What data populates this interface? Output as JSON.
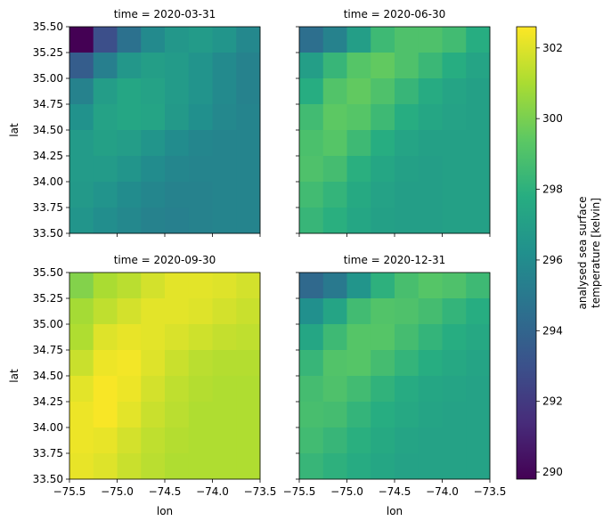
{
  "chart_data": {
    "type": "heatmap",
    "colormap": "viridis",
    "x_label": "lon",
    "y_label": "lat",
    "x_range": [
      -75.5,
      -73.5
    ],
    "y_range": [
      33.5,
      35.5
    ],
    "x_ticks": [
      -75.5,
      -75.0,
      -74.5,
      -74.0,
      -73.5
    ],
    "x_tick_labels": [
      "−75.5",
      "−75.0",
      "−74.5",
      "−74.0",
      "−73.5"
    ],
    "y_ticks": [
      33.5,
      33.75,
      34.0,
      34.25,
      34.5,
      34.75,
      35.0,
      35.25,
      35.5
    ],
    "y_tick_labels": [
      "33.50",
      "33.75",
      "34.00",
      "34.25",
      "34.50",
      "34.75",
      "35.00",
      "35.25",
      "35.50"
    ],
    "colorbar": {
      "label_line1": "analysed sea surface",
      "label_line2": "temperature [kelvin]",
      "vmin": 289.8,
      "vmax": 302.6,
      "ticks": [
        290,
        292,
        294,
        296,
        298,
        300,
        302
      ],
      "tick_labels": [
        "290",
        "292",
        "294",
        "296",
        "298",
        "300",
        "302"
      ]
    },
    "panels": [
      {
        "title": "time = 2020-03-31",
        "values": [
          [
            289.8,
            292.9,
            294.6,
            295.9,
            296.6,
            296.8,
            296.5,
            295.8
          ],
          [
            293.6,
            295.3,
            296.6,
            297.0,
            296.8,
            296.4,
            295.9,
            295.5
          ],
          [
            295.5,
            296.9,
            297.4,
            297.2,
            296.8,
            296.4,
            295.9,
            295.5
          ],
          [
            296.3,
            297.2,
            297.4,
            297.3,
            296.7,
            296.2,
            295.8,
            295.6
          ],
          [
            296.8,
            297.1,
            296.9,
            296.5,
            296.0,
            295.7,
            295.6,
            295.6
          ],
          [
            296.8,
            296.8,
            296.5,
            296.0,
            295.7,
            295.6,
            295.6,
            295.6
          ],
          [
            296.7,
            296.4,
            296.0,
            295.7,
            295.5,
            295.5,
            295.6,
            295.6
          ],
          [
            296.5,
            296.1,
            295.8,
            295.5,
            295.4,
            295.5,
            295.6,
            295.6
          ]
        ]
      },
      {
        "title": "time = 2020-06-30",
        "values": [
          [
            294.5,
            295.5,
            297.0,
            298.5,
            299.0,
            299.0,
            298.6,
            297.8
          ],
          [
            297.0,
            298.3,
            299.2,
            299.5,
            299.0,
            298.4,
            297.8,
            297.3
          ],
          [
            297.8,
            299.1,
            299.5,
            299.0,
            298.3,
            297.7,
            297.3,
            297.1
          ],
          [
            298.6,
            299.4,
            299.2,
            298.5,
            297.8,
            297.4,
            297.2,
            297.1
          ],
          [
            298.9,
            299.2,
            298.5,
            297.8,
            297.3,
            297.1,
            297.1,
            297.1
          ],
          [
            299.0,
            298.7,
            297.9,
            297.4,
            297.1,
            297.0,
            297.1,
            297.1
          ],
          [
            298.6,
            298.2,
            297.6,
            297.2,
            297.0,
            297.0,
            297.1,
            297.1
          ],
          [
            298.3,
            297.9,
            297.4,
            297.1,
            297.0,
            297.0,
            297.1,
            297.1
          ]
        ]
      },
      {
        "title": "time = 2020-09-30",
        "values": [
          [
            300.2,
            301.0,
            301.3,
            301.8,
            302.1,
            302.1,
            302.0,
            301.8
          ],
          [
            300.9,
            301.4,
            301.8,
            302.1,
            302.1,
            302.0,
            301.8,
            301.6
          ],
          [
            301.1,
            302.0,
            302.2,
            302.1,
            301.9,
            301.7,
            301.5,
            301.4
          ],
          [
            301.6,
            302.3,
            302.4,
            302.0,
            301.6,
            301.3,
            301.2,
            301.2
          ],
          [
            302.1,
            302.5,
            302.3,
            301.8,
            301.4,
            301.2,
            301.1,
            301.1
          ],
          [
            302.3,
            302.5,
            302.1,
            301.6,
            301.3,
            301.1,
            301.1,
            301.1
          ],
          [
            302.3,
            302.2,
            301.8,
            301.4,
            301.2,
            301.1,
            301.1,
            301.1
          ],
          [
            302.2,
            302.0,
            301.6,
            301.3,
            301.1,
            301.1,
            301.1,
            301.1
          ]
        ]
      },
      {
        "title": "time = 2020-12-31",
        "values": [
          [
            294.2,
            295.0,
            296.5,
            298.0,
            298.8,
            299.2,
            299.0,
            298.5
          ],
          [
            296.2,
            297.3,
            298.6,
            299.1,
            299.0,
            298.7,
            298.2,
            297.8
          ],
          [
            297.4,
            298.5,
            299.2,
            299.2,
            298.7,
            298.2,
            297.8,
            297.5
          ],
          [
            298.3,
            299.1,
            299.2,
            298.7,
            298.2,
            297.8,
            297.5,
            297.3
          ],
          [
            298.7,
            299.0,
            298.6,
            298.1,
            297.7,
            297.4,
            297.3,
            297.2
          ],
          [
            298.8,
            298.7,
            298.2,
            297.8,
            297.5,
            297.3,
            297.2,
            297.2
          ],
          [
            298.6,
            298.3,
            297.9,
            297.6,
            297.3,
            297.2,
            297.2,
            297.2
          ],
          [
            298.3,
            298.0,
            297.7,
            297.4,
            297.2,
            297.2,
            297.2,
            297.2
          ]
        ]
      }
    ]
  }
}
